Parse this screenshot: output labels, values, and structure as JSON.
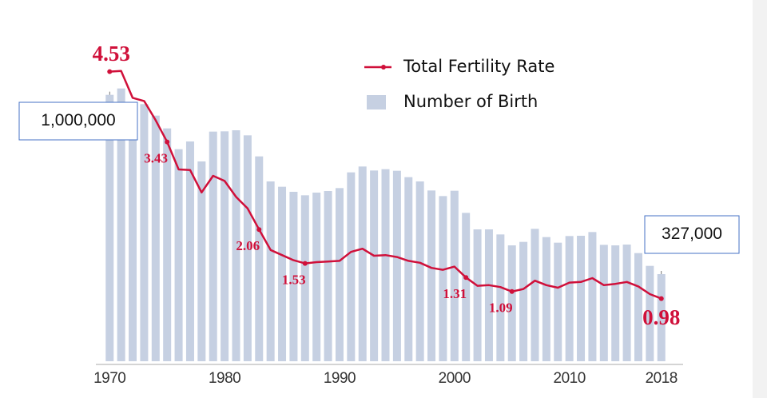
{
  "chart_data": {
    "type": "bar-line",
    "x": [
      1970,
      1971,
      1972,
      1973,
      1974,
      1975,
      1976,
      1977,
      1978,
      1979,
      1980,
      1981,
      1982,
      1983,
      1984,
      1985,
      1986,
      1987,
      1988,
      1989,
      1990,
      1991,
      1992,
      1993,
      1994,
      1995,
      1996,
      1997,
      1998,
      1999,
      2000,
      2001,
      2002,
      2003,
      2004,
      2005,
      2006,
      2007,
      2008,
      2009,
      2010,
      2011,
      2012,
      2013,
      2014,
      2015,
      2016,
      2017,
      2018
    ],
    "xlim": [
      1968.8,
      2019.2
    ],
    "xticks": [
      1970,
      1980,
      1990,
      2000,
      2010,
      2018
    ],
    "ylim": [
      0,
      1200000
    ],
    "y2lim": [
      0,
      5
    ],
    "legend": "top",
    "series": [
      {
        "name": "Number of Birth",
        "type": "bar",
        "color": "#c6d0e2",
        "values": [
          1000000,
          1024000,
          952000,
          965000,
          922000,
          874000,
          796000,
          825000,
          750000,
          862000,
          863000,
          867000,
          848000,
          769000,
          675000,
          655000,
          636000,
          623000,
          633000,
          639000,
          650000,
          709000,
          731000,
          716000,
          721000,
          715000,
          691000,
          675000,
          641000,
          620000,
          640000,
          557000,
          495000,
          495000,
          476000,
          435000,
          448000,
          497000,
          466000,
          445000,
          470000,
          471000,
          485000,
          437000,
          435000,
          438000,
          406000,
          358000,
          327000
        ],
        "value_labels": [
          "1,000,000",
          null,
          null,
          null,
          null,
          null,
          null,
          null,
          null,
          null,
          null,
          null,
          null,
          null,
          null,
          null,
          null,
          null,
          null,
          null,
          null,
          null,
          null,
          null,
          null,
          null,
          null,
          null,
          null,
          null,
          null,
          null,
          null,
          null,
          null,
          null,
          null,
          null,
          null,
          null,
          null,
          null,
          null,
          null,
          null,
          null,
          null,
          null,
          "327,000"
        ]
      },
      {
        "name": "Total Fertility Rate",
        "type": "line",
        "axis": "y2",
        "color": "#d0103a",
        "values": [
          4.53,
          4.54,
          4.12,
          4.07,
          3.77,
          3.43,
          3.0,
          2.99,
          2.64,
          2.9,
          2.82,
          2.57,
          2.39,
          2.06,
          1.74,
          1.66,
          1.58,
          1.53,
          1.55,
          1.56,
          1.57,
          1.71,
          1.76,
          1.65,
          1.66,
          1.63,
          1.57,
          1.54,
          1.46,
          1.43,
          1.48,
          1.31,
          1.18,
          1.19,
          1.16,
          1.09,
          1.13,
          1.26,
          1.19,
          1.15,
          1.23,
          1.24,
          1.3,
          1.19,
          1.21,
          1.24,
          1.17,
          1.05,
          0.98
        ],
        "value_labels": [
          "4.53",
          null,
          null,
          null,
          null,
          "3.43",
          null,
          null,
          null,
          null,
          null,
          null,
          null,
          "2.06",
          null,
          null,
          null,
          "1.53",
          null,
          null,
          null,
          null,
          null,
          null,
          null,
          null,
          null,
          null,
          null,
          null,
          null,
          "1.31",
          null,
          null,
          null,
          "1.09",
          null,
          null,
          null,
          null,
          null,
          null,
          null,
          null,
          null,
          null,
          null,
          null,
          "0.98"
        ]
      }
    ]
  }
}
